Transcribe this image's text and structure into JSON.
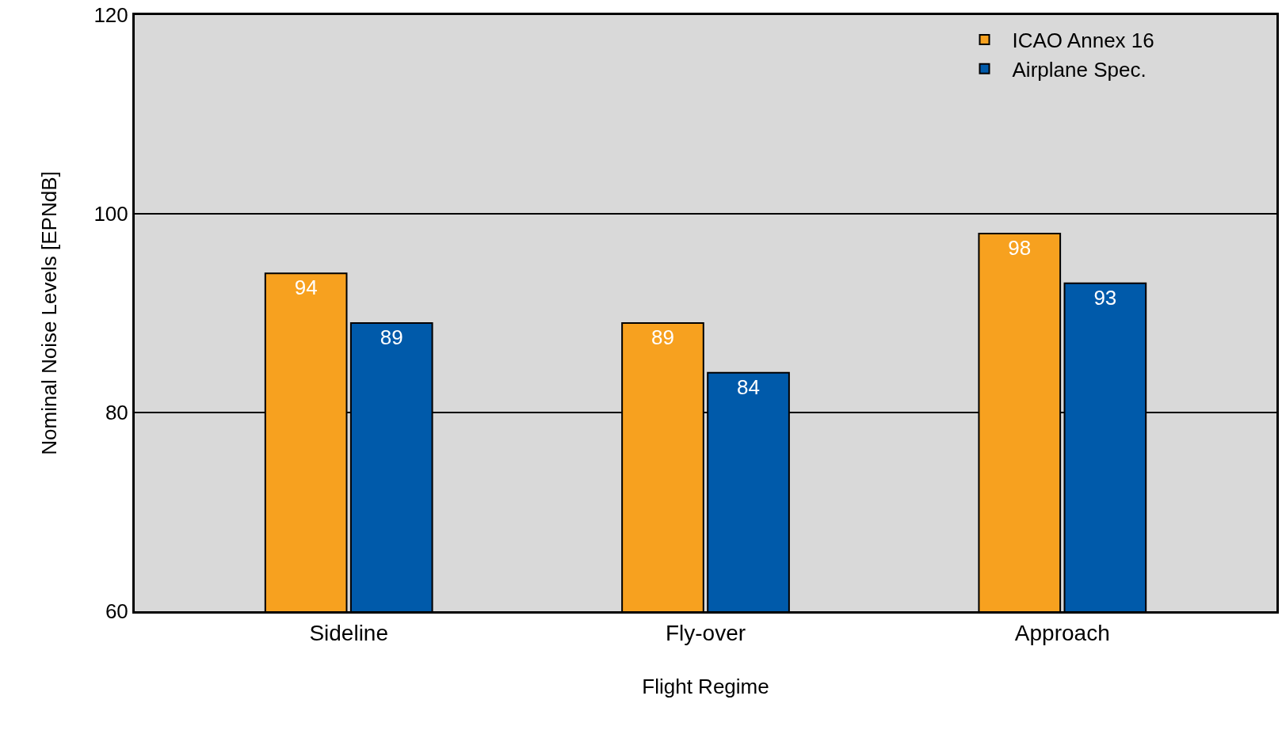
{
  "chart_data": {
    "type": "bar",
    "xlabel": "Flight Regime",
    "ylabel": "Nominal Noise Levels [EPNdB]",
    "categories": [
      "Sideline",
      "Fly-over",
      "Approach"
    ],
    "series": [
      {
        "name": "ICAO Annex 16",
        "color": "#f7a11f",
        "values": [
          94,
          89,
          98
        ]
      },
      {
        "name": "Airplane Spec.",
        "color": "#005aaa",
        "values": [
          89,
          84,
          93
        ]
      }
    ],
    "ylim": [
      60,
      120
    ],
    "yticks": [
      60,
      80,
      100,
      120
    ],
    "grid": "y",
    "legend": "top right",
    "data_labels": true
  }
}
